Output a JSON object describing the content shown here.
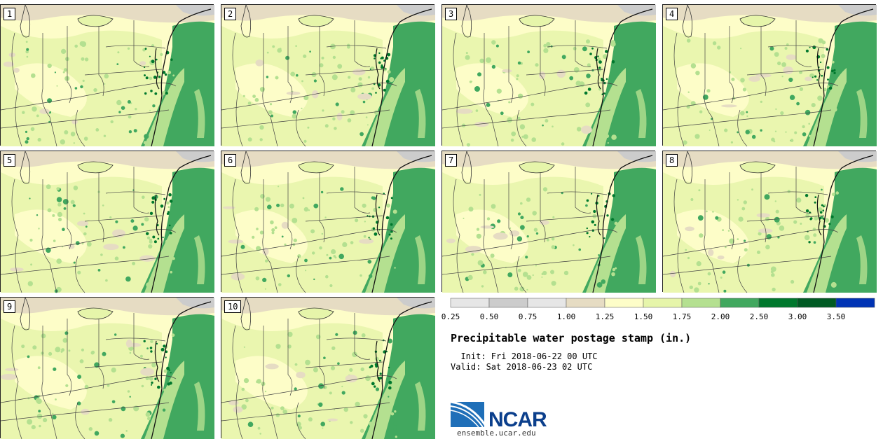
{
  "panels": [
    {
      "label": "1"
    },
    {
      "label": "2"
    },
    {
      "label": "3"
    },
    {
      "label": "4"
    },
    {
      "label": "5"
    },
    {
      "label": "6"
    },
    {
      "label": "7"
    },
    {
      "label": "8"
    },
    {
      "label": "9"
    },
    {
      "label": "10"
    }
  ],
  "colorbar": {
    "colors": [
      "#e6e6e6",
      "#cccccc",
      "#e6e6e6",
      "#e6dcc3",
      "#fdfdc8",
      "#e6f5aa",
      "#b4e090",
      "#41a85f",
      "#00782d",
      "#005a23",
      "#0033b4"
    ],
    "ticks": [
      "0.25",
      "0.50",
      "0.75",
      "1.00",
      "1.25",
      "1.50",
      "1.75",
      "2.00",
      "2.50",
      "3.00",
      "3.50"
    ]
  },
  "title": "Precipitable water postage stamp (in.)",
  "init": "  Init: Fri 2018-06-22 00 UTC",
  "valid": "Valid: Sat 2018-06-23 02 UTC",
  "logo": {
    "name": "NCAR",
    "url": "ensemble.ucar.edu"
  }
}
